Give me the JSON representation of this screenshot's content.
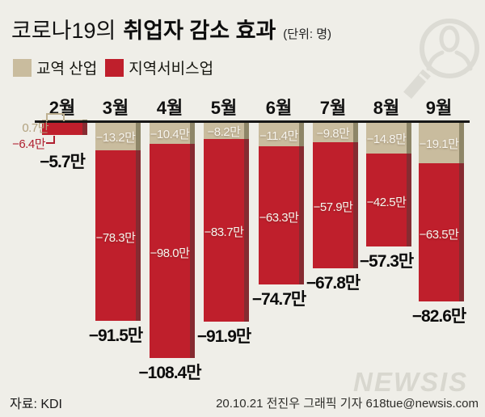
{
  "header": {
    "title_prefix": "코로나19의",
    "title_main": "취업자 감소 효과",
    "unit": "(단위: 명)"
  },
  "legend": [
    {
      "label": "교역 산업",
      "color": "#c9bc9e"
    },
    {
      "label": "지역서비스업",
      "color": "#bf1f2c"
    }
  ],
  "icons": {
    "magnifier_person": "magnifier-with-person-watermark-icon",
    "icon_color": "#dcdbd4"
  },
  "chart_data": {
    "type": "bar",
    "stacked": true,
    "title": "코로나19의 취업자 감소 효과",
    "value_unit": "만 명 (×10,000 persons)",
    "categories": [
      "2월",
      "3월",
      "4월",
      "5월",
      "6월",
      "7월",
      "8월",
      "9월"
    ],
    "ylim": [
      -110,
      5
    ],
    "baseline": 0,
    "grid": false,
    "legend_position": "top-left",
    "series": [
      {
        "name": "교역 산업",
        "color": "#c9bc9e",
        "shadow_color": "#8e8668",
        "values": [
          0.7,
          -13.2,
          -10.4,
          -8.2,
          -11.4,
          -9.8,
          -14.8,
          -19.1
        ],
        "labels": [
          "0.7만",
          "−13.2만",
          "−10.4만",
          "−8.2만",
          "−11.4만",
          "−9.8만",
          "−14.8만",
          "−19.1만"
        ]
      },
      {
        "name": "지역서비스업",
        "color": "#bf1f2c",
        "shadow_color": "#862b31",
        "values": [
          -6.4,
          -78.3,
          -98.0,
          -83.7,
          -63.3,
          -57.9,
          -42.5,
          -63.5
        ],
        "labels": [
          "−6.4만",
          "−78.3만",
          "−98.0만",
          "−83.7만",
          "−63.3만",
          "−57.9만",
          "−42.5만",
          "−63.5만"
        ]
      }
    ],
    "totals": {
      "values": [
        -5.7,
        -91.5,
        -108.4,
        -91.9,
        -74.7,
        -67.8,
        -57.3,
        -82.6
      ],
      "labels": [
        "−5.7만",
        "−91.5만",
        "−108.4만",
        "−91.9만",
        "−74.7만",
        "−67.8만",
        "−57.3만",
        "−82.6만"
      ]
    }
  },
  "footer": {
    "source": "자료: KDI",
    "credit": "20.10.21 전진우 그래픽 기자 618tue@newsis.com",
    "watermark": "NEWSIS"
  }
}
